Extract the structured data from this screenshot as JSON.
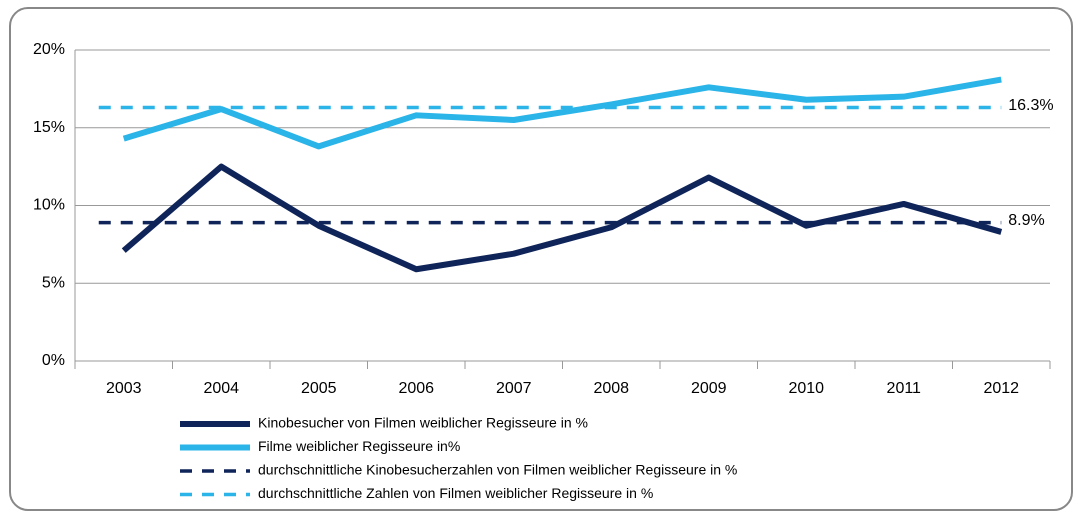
{
  "chart_data": {
    "type": "line",
    "categories": [
      "2003",
      "2004",
      "2005",
      "2006",
      "2007",
      "2008",
      "2009",
      "2010",
      "2011",
      "2012"
    ],
    "series": [
      {
        "name": "Kinobesucher von Filmen weiblicher Regisseure in %",
        "color": "#0f2459",
        "style": "solid",
        "values": [
          7.1,
          12.5,
          8.7,
          5.9,
          6.9,
          8.6,
          11.8,
          8.7,
          10.1,
          8.3
        ]
      },
      {
        "name": "Filme weiblicher Regisseure in%",
        "color": "#2ab4e8",
        "style": "solid",
        "values": [
          14.3,
          16.2,
          13.8,
          15.8,
          15.5,
          16.5,
          17.6,
          16.8,
          17.0,
          18.1
        ]
      },
      {
        "name": "durchschnittliche Kinobesucherzahlen von Filmen weiblicher Regisseure in %",
        "color": "#0f2459",
        "style": "dashed",
        "values": [
          8.9,
          8.9,
          8.9,
          8.9,
          8.9,
          8.9,
          8.9,
          8.9,
          8.9,
          8.9
        ],
        "value_labels": [
          null,
          null,
          null,
          null,
          null,
          null,
          null,
          null,
          null,
          "8.9%"
        ]
      },
      {
        "name": "durchschnittliche Zahlen von Filmen weiblicher Regisseure in %",
        "color": "#2ab4e8",
        "style": "dashed",
        "values": [
          16.3,
          16.3,
          16.3,
          16.3,
          16.3,
          16.3,
          16.3,
          16.3,
          16.3,
          16.3
        ],
        "value_labels": [
          null,
          null,
          null,
          null,
          null,
          null,
          null,
          null,
          null,
          "16.3%"
        ]
      }
    ],
    "ylim": [
      0,
      20
    ],
    "yticks": [
      {
        "value": 0,
        "label": "0%"
      },
      {
        "value": 5,
        "label": "5%"
      },
      {
        "value": 10,
        "label": "10%"
      },
      {
        "value": 15,
        "label": "15%"
      },
      {
        "value": 20,
        "label": "20%"
      }
    ],
    "grid": true
  }
}
